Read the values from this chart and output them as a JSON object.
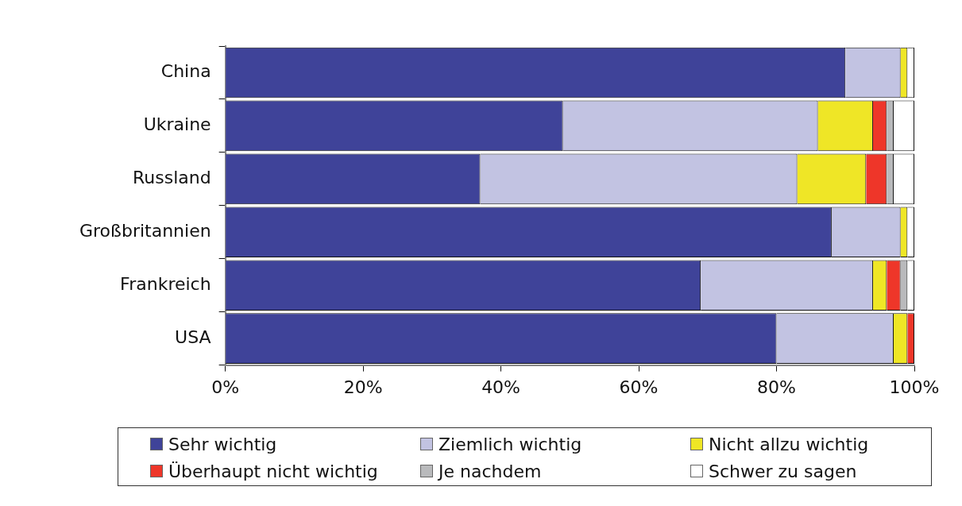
{
  "chart_data": {
    "type": "bar",
    "orientation": "horizontal",
    "stacked": true,
    "categories": [
      "China",
      "Ukraine",
      "Russland",
      "Großbritannien",
      "Frankreich",
      "USA"
    ],
    "series": [
      {
        "name": "Sehr wichtig",
        "color": "#3f4399",
        "values": [
          90,
          49,
          37,
          88,
          69,
          80
        ]
      },
      {
        "name": "Ziemlich wichtig",
        "color": "#c2c3e2",
        "values": [
          8,
          37,
          46,
          10,
          25,
          17
        ]
      },
      {
        "name": "Nicht allzu wichtig",
        "color": "#efe626",
        "values": [
          1,
          8,
          10,
          1,
          2,
          2
        ]
      },
      {
        "name": "Überhaupt nicht wichtig",
        "color": "#ee3629",
        "values": [
          0,
          2,
          3,
          0,
          2,
          1
        ]
      },
      {
        "name": "Je nachdem",
        "color": "#b9babc",
        "values": [
          0,
          1,
          1,
          0,
          1,
          0
        ]
      },
      {
        "name": "Schwer zu sagen",
        "color": "#ffffff",
        "values": [
          1,
          3,
          3,
          1,
          1,
          0
        ]
      }
    ],
    "xlim": [
      0,
      100
    ],
    "xticks": [
      {
        "value": 0,
        "label": "0%"
      },
      {
        "value": 20,
        "label": "20%"
      },
      {
        "value": 40,
        "label": "40%"
      },
      {
        "value": 60,
        "label": "60%"
      },
      {
        "value": 80,
        "label": "80%"
      },
      {
        "value": 100,
        "label": "100%"
      }
    ],
    "grid": false,
    "legend": "bottom"
  }
}
